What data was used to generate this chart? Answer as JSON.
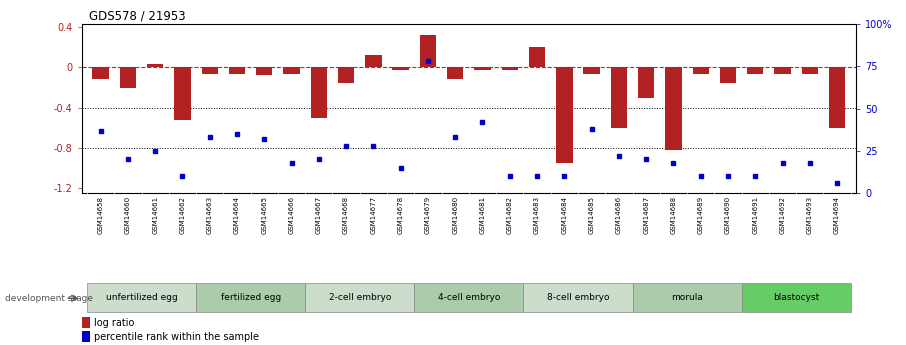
{
  "title": "GDS578 / 21953",
  "samples": [
    "GSM14658",
    "GSM14660",
    "GSM14661",
    "GSM14662",
    "GSM14663",
    "GSM14664",
    "GSM14665",
    "GSM14666",
    "GSM14667",
    "GSM14668",
    "GSM14677",
    "GSM14678",
    "GSM14679",
    "GSM14680",
    "GSM14681",
    "GSM14682",
    "GSM14683",
    "GSM14684",
    "GSM14685",
    "GSM14686",
    "GSM14687",
    "GSM14688",
    "GSM14689",
    "GSM14690",
    "GSM14691",
    "GSM14692",
    "GSM14693",
    "GSM14694"
  ],
  "log_ratio": [
    -0.12,
    -0.2,
    0.03,
    -0.52,
    -0.07,
    -0.07,
    -0.08,
    -0.07,
    -0.5,
    -0.15,
    0.12,
    -0.03,
    0.32,
    -0.12,
    -0.03,
    -0.03,
    0.2,
    -0.95,
    -0.07,
    -0.6,
    -0.3,
    -0.82,
    -0.07,
    -0.15,
    -0.07,
    -0.07,
    -0.07,
    -0.6
  ],
  "percentile": [
    37,
    20,
    25,
    10,
    33,
    35,
    32,
    18,
    20,
    28,
    28,
    15,
    78,
    33,
    42,
    10,
    10,
    10,
    38,
    22,
    20,
    18,
    10,
    10,
    10,
    18,
    18,
    6
  ],
  "stages": [
    {
      "label": "unfertilized egg",
      "start": 0,
      "end": 4,
      "color": "#ccddcc"
    },
    {
      "label": "fertilized egg",
      "start": 4,
      "end": 8,
      "color": "#aaccaa"
    },
    {
      "label": "2-cell embryo",
      "start": 8,
      "end": 12,
      "color": "#ccddcc"
    },
    {
      "label": "4-cell embryo",
      "start": 12,
      "end": 16,
      "color": "#aaccaa"
    },
    {
      "label": "8-cell embryo",
      "start": 16,
      "end": 20,
      "color": "#ccddcc"
    },
    {
      "label": "morula",
      "start": 20,
      "end": 24,
      "color": "#aaccaa"
    },
    {
      "label": "blastocyst",
      "start": 24,
      "end": 28,
      "color": "#66cc66"
    }
  ],
  "bar_color": "#b22222",
  "dot_color": "#0000cc",
  "ylim_left": [
    -1.25,
    0.43
  ],
  "ylim_right": [
    0,
    100
  ],
  "right_ticks": [
    0,
    25,
    50,
    75,
    100
  ],
  "right_tick_labels": [
    "0",
    "25",
    "50",
    "75",
    "100%"
  ],
  "left_ticks": [
    -1.2,
    -0.8,
    -0.4,
    0.0,
    0.4
  ],
  "left_tick_labels": [
    "-1.2",
    "-0.8",
    "-0.4",
    "0",
    "0.4"
  ],
  "hline_color": "#cc2222",
  "dotted_line_color": "black",
  "bg_color": "white",
  "dev_stage_label": "development stage"
}
